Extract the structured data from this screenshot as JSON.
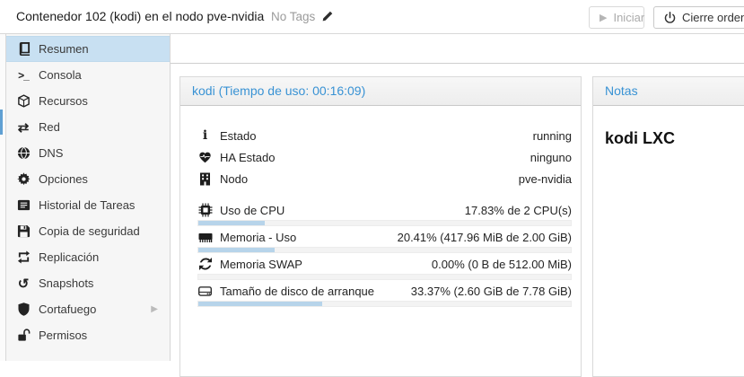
{
  "topbar": {
    "title": "Contenedor 102 (kodi) en el nodo pve-nvidia",
    "tags_label": "No Tags",
    "start_label": "Iniciar",
    "shutdown_label": "Cierre ordenado"
  },
  "sidebar": {
    "items": [
      {
        "label": "Resumen",
        "icon": "book-icon",
        "selected": true
      },
      {
        "label": "Consola",
        "icon": "terminal-icon"
      },
      {
        "label": "Recursos",
        "icon": "cube-icon"
      },
      {
        "label": "Red",
        "icon": "network-icon"
      },
      {
        "label": "DNS",
        "icon": "globe-icon"
      },
      {
        "label": "Opciones",
        "icon": "gear-icon"
      },
      {
        "label": "Historial de Tareas",
        "icon": "task-list-icon"
      },
      {
        "label": "Copia de seguridad",
        "icon": "floppy-icon"
      },
      {
        "label": "Replicación",
        "icon": "replication-icon"
      },
      {
        "label": "Snapshots",
        "icon": "snapshot-icon"
      },
      {
        "label": "Cortafuego",
        "icon": "shield-icon",
        "has_submenu": true
      },
      {
        "label": "Permisos",
        "icon": "unlock-icon"
      }
    ]
  },
  "status_panel": {
    "header": "kodi (Tiempo de uso: 00:16:09)",
    "rows": [
      {
        "icon": "info-icon",
        "label": "Estado",
        "value": "running"
      },
      {
        "icon": "heartbeat-icon",
        "label": "HA Estado",
        "value": "ninguno"
      },
      {
        "icon": "building-icon",
        "label": "Nodo",
        "value": "pve-nvidia"
      }
    ],
    "meters": [
      {
        "icon": "cpu-icon",
        "label": "Uso de CPU",
        "value": "17.83% de 2 CPU(s)",
        "percent": 17.83
      },
      {
        "icon": "memory-icon",
        "label": "Memoria - Uso",
        "value": "20.41% (417.96 MiB de 2.00 GiB)",
        "percent": 20.41
      },
      {
        "icon": "swap-icon",
        "label": "Memoria SWAP",
        "value": "0.00% (0 B de 512.00 MiB)",
        "percent": 0
      },
      {
        "icon": "disk-icon",
        "label": "Tamaño de disco de arranque",
        "value": "33.37% (2.60 GiB de 7.78 GiB)",
        "percent": 33.37
      }
    ]
  },
  "notes_panel": {
    "header": "Notas",
    "content": "kodi LXC"
  },
  "colors": {
    "accent_blue": "#3892d4",
    "selected_item_bg": "#c8e0f2",
    "progress_fill": "#b7d4ea",
    "progress_track": "#f3f3f3",
    "tree_thumb_blue": "#60a0d3"
  }
}
